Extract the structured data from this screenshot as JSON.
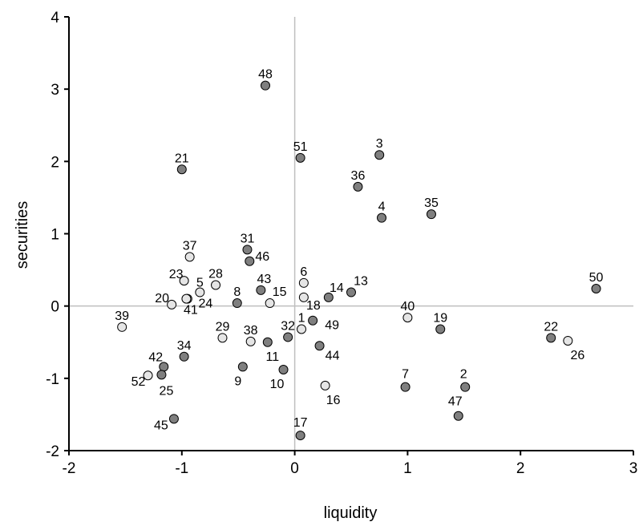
{
  "chart_data": {
    "type": "scatter",
    "title": "",
    "xlabel": "liquidity",
    "ylabel": "securities",
    "xlim": [
      -2,
      3
    ],
    "ylim": [
      -2,
      4
    ],
    "xticks": [
      "-2",
      "-1",
      "0",
      "1",
      "2",
      "3"
    ],
    "yticks": [
      "-2",
      "-1",
      "0",
      "1",
      "2",
      "3",
      "4"
    ],
    "grid": false,
    "reference_lines": {
      "x": 0,
      "y": 0
    },
    "colors": {
      "dark": "#7f7f7f",
      "light": "#e5e5e5",
      "outline": "#000000",
      "refline": "#bfbfbf"
    },
    "points": [
      {
        "label": "48",
        "x": -0.26,
        "y": 3.05,
        "group": "dark",
        "lx": 0,
        "ly": -14
      },
      {
        "label": "51",
        "x": 0.05,
        "y": 2.05,
        "group": "dark",
        "lx": 0,
        "ly": -14
      },
      {
        "label": "3",
        "x": 0.75,
        "y": 2.09,
        "group": "dark",
        "lx": 0,
        "ly": -14
      },
      {
        "label": "21",
        "x": -1.0,
        "y": 1.89,
        "group": "dark",
        "lx": 0,
        "ly": -14
      },
      {
        "label": "36",
        "x": 0.56,
        "y": 1.65,
        "group": "dark",
        "lx": 0,
        "ly": -14
      },
      {
        "label": "35",
        "x": 1.21,
        "y": 1.27,
        "group": "dark",
        "lx": 0,
        "ly": -14
      },
      {
        "label": "4",
        "x": 0.77,
        "y": 1.22,
        "group": "dark",
        "lx": 0,
        "ly": -14
      },
      {
        "label": "50",
        "x": 2.67,
        "y": 0.24,
        "group": "dark",
        "lx": 0,
        "ly": -14
      },
      {
        "label": "31",
        "x": -0.42,
        "y": 0.78,
        "group": "dark",
        "lx": 0,
        "ly": -14
      },
      {
        "label": "46",
        "x": -0.4,
        "y": 0.62,
        "group": "dark",
        "lx": 16,
        "ly": -6
      },
      {
        "label": "37",
        "x": -0.93,
        "y": 0.68,
        "group": "light",
        "lx": 0,
        "ly": -14
      },
      {
        "label": "23",
        "x": -0.98,
        "y": 0.35,
        "group": "light",
        "lx": -10,
        "ly": -8
      },
      {
        "label": "28",
        "x": -0.7,
        "y": 0.29,
        "group": "light",
        "lx": 0,
        "ly": -14
      },
      {
        "label": "5",
        "x": -0.84,
        "y": 0.19,
        "group": "light",
        "lx": 0,
        "ly": -12
      },
      {
        "label": "6",
        "x": 0.08,
        "y": 0.32,
        "group": "light",
        "lx": 0,
        "ly": -14
      },
      {
        "label": "43",
        "x": -0.3,
        "y": 0.22,
        "group": "dark",
        "lx": 4,
        "ly": -14
      },
      {
        "label": "15",
        "x": -0.22,
        "y": 0.04,
        "group": "light",
        "lx": 12,
        "ly": -14
      },
      {
        "label": "8",
        "x": -0.51,
        "y": 0.04,
        "group": "dark",
        "lx": 0,
        "ly": -14
      },
      {
        "label": "20",
        "x": -1.09,
        "y": 0.02,
        "group": "light",
        "lx": -12,
        "ly": -8
      },
      {
        "label": "41",
        "x": -0.95,
        "y": 0.1,
        "group": "light",
        "lx": 4,
        "ly": 14
      },
      {
        "label": "24",
        "x": -0.96,
        "y": 0.1,
        "group": "light",
        "lx": 24,
        "ly": 6
      },
      {
        "label": "14",
        "x": 0.3,
        "y": 0.12,
        "group": "dark",
        "lx": 10,
        "ly": -12
      },
      {
        "label": "13",
        "x": 0.5,
        "y": 0.19,
        "group": "dark",
        "lx": 12,
        "ly": -14
      },
      {
        "label": "18",
        "x": 0.08,
        "y": 0.12,
        "group": "light",
        "lx": 12,
        "ly": 10
      },
      {
        "label": "39",
        "x": -1.53,
        "y": -0.29,
        "group": "light",
        "lx": 0,
        "ly": -14
      },
      {
        "label": "29",
        "x": -0.64,
        "y": -0.44,
        "group": "light",
        "lx": 0,
        "ly": -14
      },
      {
        "label": "38",
        "x": -0.39,
        "y": -0.49,
        "group": "light",
        "lx": 0,
        "ly": -14
      },
      {
        "label": "32",
        "x": -0.06,
        "y": -0.43,
        "group": "dark",
        "lx": 0,
        "ly": -14
      },
      {
        "label": "1",
        "x": 0.06,
        "y": -0.32,
        "group": "light",
        "lx": 0,
        "ly": -14
      },
      {
        "label": "49",
        "x": 0.16,
        "y": -0.2,
        "group": "dark",
        "lx": 24,
        "ly": 6
      },
      {
        "label": "40",
        "x": 1.0,
        "y": -0.16,
        "group": "light",
        "lx": 0,
        "ly": -14
      },
      {
        "label": "19",
        "x": 1.29,
        "y": -0.32,
        "group": "dark",
        "lx": 0,
        "ly": -14
      },
      {
        "label": "22",
        "x": 2.27,
        "y": -0.44,
        "group": "dark",
        "lx": 0,
        "ly": -14
      },
      {
        "label": "26",
        "x": 2.42,
        "y": -0.48,
        "group": "light",
        "lx": 12,
        "ly": 18
      },
      {
        "label": "34",
        "x": -0.98,
        "y": -0.7,
        "group": "dark",
        "lx": 0,
        "ly": -14
      },
      {
        "label": "11",
        "x": -0.24,
        "y": -0.5,
        "group": "dark",
        "lx": 6,
        "ly": 18
      },
      {
        "label": "44",
        "x": 0.22,
        "y": -0.55,
        "group": "dark",
        "lx": 16,
        "ly": 12
      },
      {
        "label": "42",
        "x": -1.16,
        "y": -0.84,
        "group": "dark",
        "lx": -10,
        "ly": -12
      },
      {
        "label": "52",
        "x": -1.3,
        "y": -0.96,
        "group": "light",
        "lx": -12,
        "ly": 8
      },
      {
        "label": "25",
        "x": -1.18,
        "y": -0.95,
        "group": "dark",
        "lx": 6,
        "ly": 20
      },
      {
        "label": "9",
        "x": -0.46,
        "y": -0.84,
        "group": "dark",
        "lx": -6,
        "ly": 18
      },
      {
        "label": "10",
        "x": -0.1,
        "y": -0.88,
        "group": "dark",
        "lx": -8,
        "ly": 18
      },
      {
        "label": "16",
        "x": 0.27,
        "y": -1.1,
        "group": "light",
        "lx": 10,
        "ly": 18
      },
      {
        "label": "7",
        "x": 0.98,
        "y": -1.12,
        "group": "dark",
        "lx": 0,
        "ly": -16
      },
      {
        "label": "2",
        "x": 1.51,
        "y": -1.12,
        "group": "dark",
        "lx": -2,
        "ly": -16
      },
      {
        "label": "47",
        "x": 1.45,
        "y": -1.52,
        "group": "dark",
        "lx": -4,
        "ly": -18
      },
      {
        "label": "45",
        "x": -1.07,
        "y": -1.56,
        "group": "dark",
        "lx": -16,
        "ly": 8
      },
      {
        "label": "17",
        "x": 0.05,
        "y": -1.79,
        "group": "dark",
        "lx": 0,
        "ly": -16
      }
    ]
  }
}
